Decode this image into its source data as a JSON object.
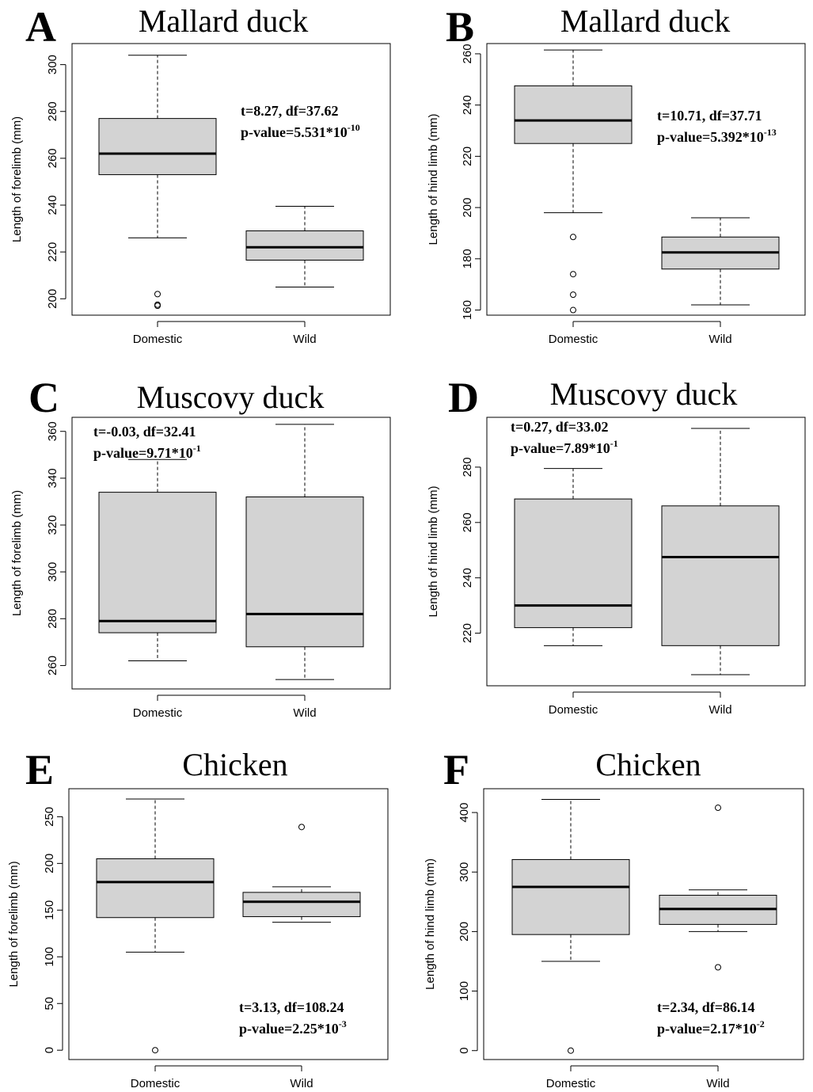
{
  "chart_data": [
    {
      "type": "box",
      "panel": "A",
      "title": "Mallard duck",
      "xlabel": "",
      "ylabel": "Length of forelimb (mm)",
      "ylim": [
        193,
        309
      ],
      "yticks": [
        200,
        220,
        240,
        260,
        280,
        300
      ],
      "categories": [
        "Domestic",
        "Wild"
      ],
      "boxes": [
        {
          "whisker_low": 226,
          "q1": 253,
          "median": 262,
          "q3": 277,
          "whisker_high": 304,
          "outliers": [
            202,
            197.5,
            197
          ]
        },
        {
          "whisker_low": 205,
          "q1": 216.5,
          "median": 222,
          "q3": 229,
          "whisker_high": 239.5,
          "outliers": []
        }
      ],
      "stats": {
        "line1": "t=8.27, df=37.62",
        "line2_base": "p-value=5.531*10",
        "line2_exp": "-10"
      }
    },
    {
      "type": "box",
      "panel": "B",
      "title": "Mallard duck",
      "xlabel": "",
      "ylabel": "Length of hind limb (mm)",
      "ylim": [
        158,
        264
      ],
      "yticks": [
        160,
        180,
        200,
        220,
        240,
        260
      ],
      "categories": [
        "Domestic",
        "Wild"
      ],
      "boxes": [
        {
          "whisker_low": 198,
          "q1": 225,
          "median": 234,
          "q3": 247.5,
          "whisker_high": 261.5,
          "outliers": [
            188.5,
            174,
            166,
            160
          ]
        },
        {
          "whisker_low": 162,
          "q1": 176,
          "median": 182.5,
          "q3": 188.5,
          "whisker_high": 196,
          "outliers": []
        }
      ],
      "stats": {
        "line1": "t=10.71, df=37.71",
        "line2_base": "p-value=5.392*10",
        "line2_exp": "-13"
      }
    },
    {
      "type": "box",
      "panel": "C",
      "title": "Muscovy duck",
      "xlabel": "",
      "ylabel": "Length of forelimb (mm)",
      "ylim": [
        250,
        366
      ],
      "yticks": [
        260,
        280,
        300,
        320,
        340,
        360
      ],
      "categories": [
        "Domestic",
        "Wild"
      ],
      "boxes": [
        {
          "whisker_low": 262,
          "q1": 274,
          "median": 279,
          "q3": 334,
          "whisker_high": 348,
          "outliers": []
        },
        {
          "whisker_low": 254,
          "q1": 268,
          "median": 282,
          "q3": 332,
          "whisker_high": 363,
          "outliers": []
        }
      ],
      "stats": {
        "line1": "t=-0.03, df=32.41",
        "line2_base": "p-value=9.71*10",
        "line2_exp": "-1"
      }
    },
    {
      "type": "box",
      "panel": "D",
      "title": "Muscovy duck",
      "xlabel": "",
      "ylabel": "Length of hind limb (mm)",
      "ylim": [
        201,
        298
      ],
      "yticks": [
        220,
        240,
        260,
        280
      ],
      "categories": [
        "Domestic",
        "Wild"
      ],
      "boxes": [
        {
          "whisker_low": 215.5,
          "q1": 222,
          "median": 230,
          "q3": 268.5,
          "whisker_high": 279.5,
          "outliers": []
        },
        {
          "whisker_low": 205,
          "q1": 215.5,
          "median": 247.5,
          "q3": 266,
          "whisker_high": 294,
          "outliers": []
        }
      ],
      "stats": {
        "line1": "t=0.27, df=33.02",
        "line2_base": "p-value=7.89*10",
        "line2_exp": "-1"
      }
    },
    {
      "type": "box",
      "panel": "E",
      "title": "Chicken",
      "xlabel": "",
      "ylabel": "Length of forelimb (mm)",
      "ylim": [
        -10,
        280
      ],
      "yticks": [
        0,
        50,
        100,
        150,
        200,
        250
      ],
      "categories": [
        "Domestic",
        "Wild"
      ],
      "boxes": [
        {
          "whisker_low": 105,
          "q1": 142,
          "median": 180,
          "q3": 205,
          "whisker_high": 269,
          "outliers": [
            0
          ]
        },
        {
          "whisker_low": 137,
          "q1": 143,
          "median": 159,
          "q3": 169,
          "whisker_high": 175,
          "outliers": [
            239
          ]
        }
      ],
      "stats": {
        "line1": "t=3.13, df=108.24",
        "line2_base": "p-value=2.25*10",
        "line2_exp": "-3"
      }
    },
    {
      "type": "box",
      "panel": "F",
      "title": "Chicken",
      "xlabel": "",
      "ylabel": "Length of hind limb (mm)",
      "ylim": [
        -15,
        440
      ],
      "yticks": [
        0,
        100,
        200,
        300,
        400
      ],
      "categories": [
        "Domestic",
        "Wild"
      ],
      "boxes": [
        {
          "whisker_low": 150,
          "q1": 195,
          "median": 275,
          "q3": 321,
          "whisker_high": 422,
          "outliers": [
            0
          ]
        },
        {
          "whisker_low": 200,
          "q1": 212,
          "median": 238,
          "q3": 261,
          "whisker_high": 270,
          "outliers": [
            408,
            140
          ]
        }
      ],
      "stats": {
        "line1": "t=2.34, df=86.14",
        "line2_base": "p-value=2.17*10",
        "line2_exp": "-2"
      }
    }
  ],
  "style": {
    "box_fill": "#d3d3d3",
    "line_color": "#000000",
    "background": "#ffffff"
  }
}
